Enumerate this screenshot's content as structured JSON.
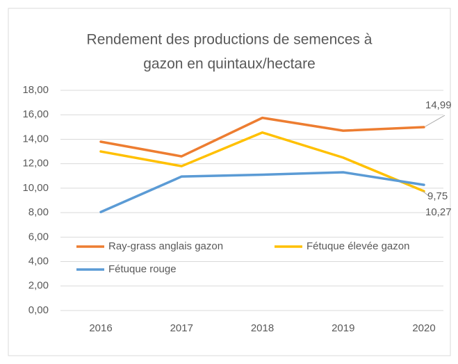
{
  "chart_data": {
    "type": "line",
    "title": [
      "Rendement des productions de semences à",
      "gazon en quintaux/hectare"
    ],
    "categories": [
      "2016",
      "2017",
      "2018",
      "2019",
      "2020"
    ],
    "series": [
      {
        "name": "Ray-grass anglais gazon",
        "color": "#ED7D31",
        "values": [
          13.8,
          12.6,
          15.75,
          14.7,
          14.99
        ],
        "value_labels": [
          null,
          null,
          null,
          null,
          "14,99"
        ]
      },
      {
        "name": "Fétuque élevée gazon",
        "color": "#FFC000",
        "values": [
          13.0,
          11.8,
          14.55,
          12.5,
          9.75
        ],
        "value_labels": [
          null,
          null,
          null,
          null,
          "9,75"
        ]
      },
      {
        "name": "Fétuque rouge",
        "color": "#5B9BD5",
        "values": [
          8.05,
          10.95,
          11.1,
          11.3,
          10.27
        ],
        "value_labels": [
          null,
          null,
          null,
          null,
          "10,27"
        ]
      }
    ],
    "ylim": [
      0,
      18
    ],
    "yticks": [
      {
        "value": 0,
        "label": "0,00"
      },
      {
        "value": 2,
        "label": "2,00"
      },
      {
        "value": 4,
        "label": "4,00"
      },
      {
        "value": 6,
        "label": "6,00"
      },
      {
        "value": 8,
        "label": "8,00"
      },
      {
        "value": 10,
        "label": "10,00"
      },
      {
        "value": 12,
        "label": "12,00"
      },
      {
        "value": 14,
        "label": "14,00"
      },
      {
        "value": 16,
        "label": "16,00"
      },
      {
        "value": 18,
        "label": "18,00"
      }
    ],
    "grid": true,
    "legend": "bottom-inside"
  }
}
